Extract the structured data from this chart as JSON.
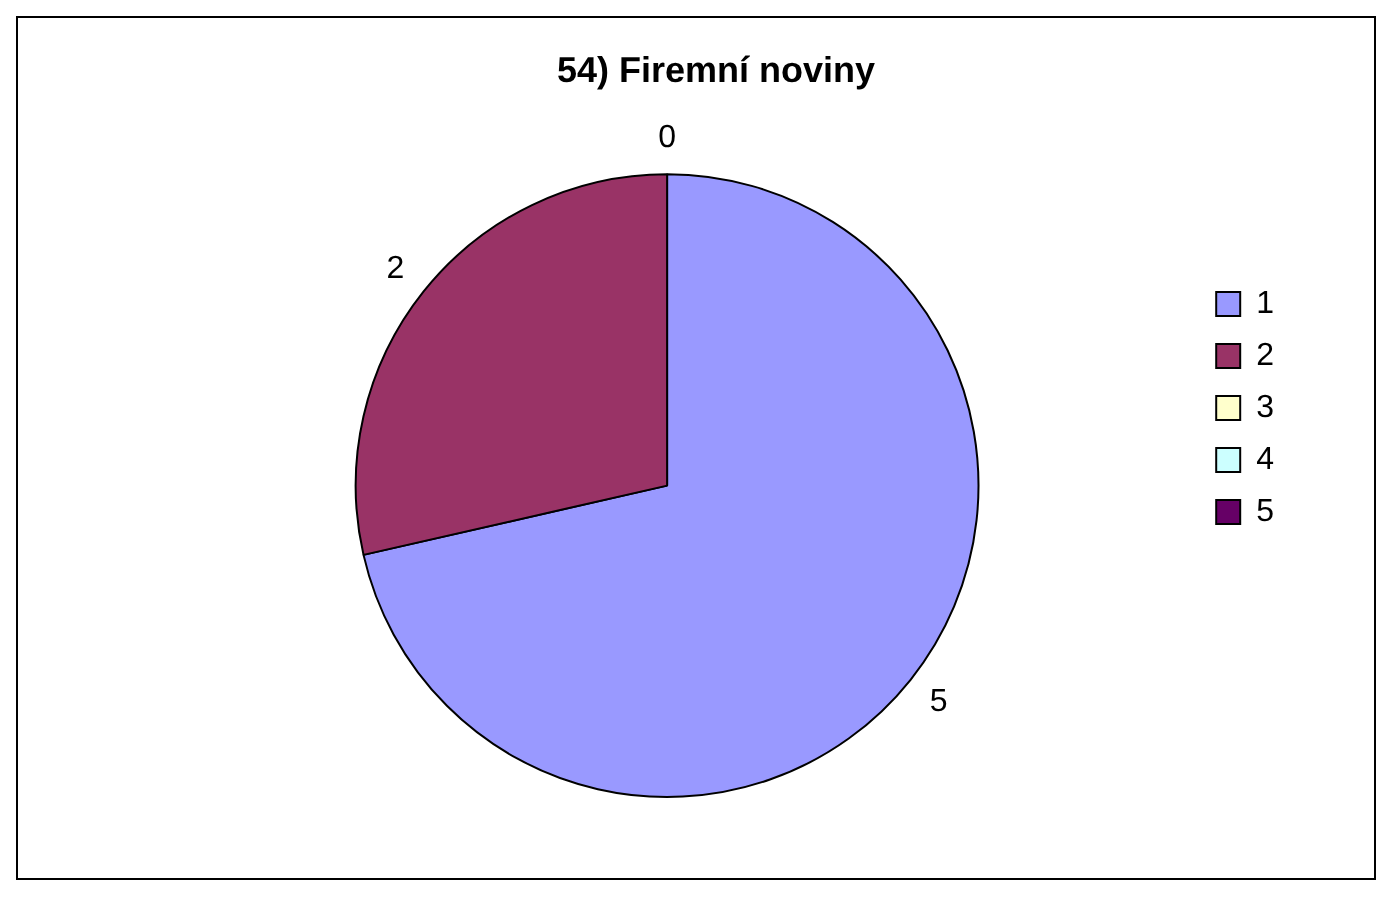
{
  "chart_data": {
    "type": "pie",
    "title": "54) Firemní noviny",
    "categories": [
      "1",
      "2",
      "3",
      "4",
      "5"
    ],
    "values": [
      5,
      2,
      0,
      0,
      0
    ],
    "colors": [
      "#9999ff",
      "#993366",
      "#ffffcc",
      "#ccffff",
      "#660066"
    ],
    "value_labels": [
      "5",
      "2",
      "0",
      null,
      null
    ],
    "legend": "right"
  }
}
